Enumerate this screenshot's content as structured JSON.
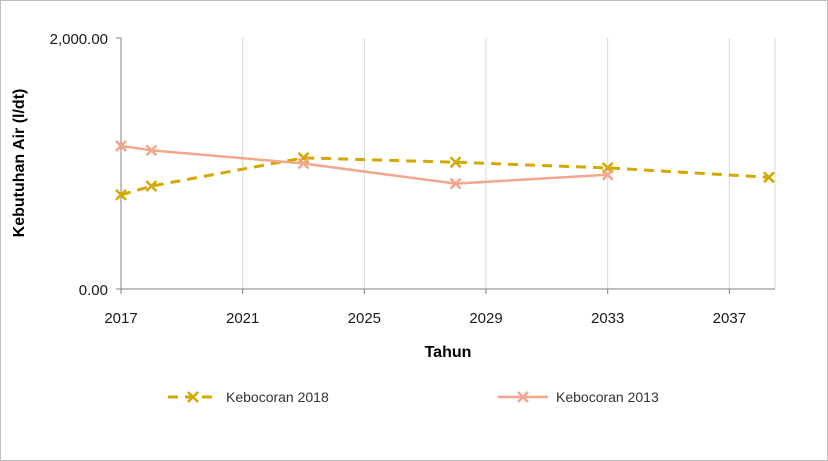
{
  "chart_data": {
    "type": "line",
    "title": "",
    "xlabel": "Tahun",
    "ylabel": "Kebutuhan Air (l/dt)",
    "xlim": [
      2017,
      2038.5
    ],
    "ylim": [
      0,
      2000
    ],
    "x_ticks": [
      2017,
      2021,
      2025,
      2029,
      2033,
      2037
    ],
    "x_tick_labels": [
      "2017",
      "2021",
      "2025",
      "2029",
      "2033",
      "2037"
    ],
    "y_ticks": [
      0,
      2000
    ],
    "y_tick_labels": [
      "0.00",
      "2,000.00"
    ],
    "grid": {
      "vertical": true,
      "horizontal": false
    },
    "legend_position": "bottom",
    "series": [
      {
        "name": "Kebocoran 2018",
        "color": "#d4a800",
        "line_style": "dashed",
        "marker": "x",
        "x": [
          2017,
          2018,
          2023,
          2028,
          2033,
          2038.3
        ],
        "y": [
          750,
          820,
          1045,
          1010,
          965,
          890
        ]
      },
      {
        "name": "Kebocoran 2013",
        "color": "#f2a68c",
        "line_style": "solid",
        "marker": "x",
        "x": [
          2017,
          2018,
          2023,
          2028,
          2033
        ],
        "y": [
          1140,
          1105,
          1000,
          840,
          910
        ]
      }
    ]
  }
}
